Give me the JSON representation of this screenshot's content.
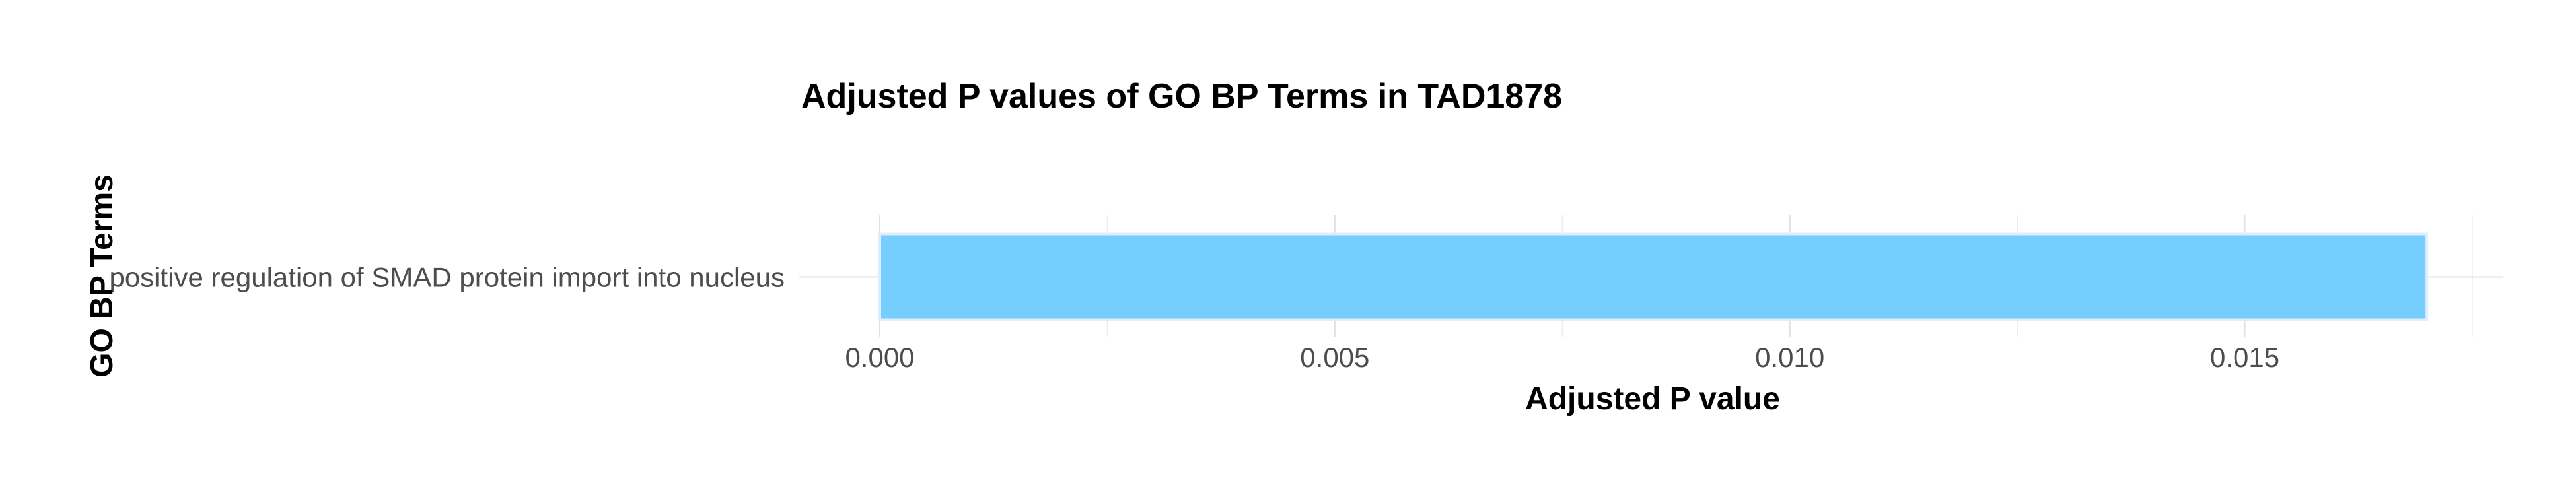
{
  "chart_data": {
    "type": "bar",
    "orientation": "horizontal",
    "title": "Adjusted P values of GO BP Terms in TAD1878",
    "xlabel": "Adjusted P value",
    "ylabel": "GO BP Terms",
    "categories": [
      "positive regulation of SMAD protein import into nucleus"
    ],
    "values": [
      0.017
    ],
    "xlim": [
      0,
      0.0175
    ],
    "xticks": [
      0.0,
      0.005,
      0.01,
      0.015
    ],
    "xtick_labels": [
      "0.000",
      "0.005",
      "0.010",
      "0.015"
    ],
    "grid": true,
    "legend": "none",
    "bar_color": "#75cefd",
    "bar_outline_color": "#dfeefa"
  }
}
